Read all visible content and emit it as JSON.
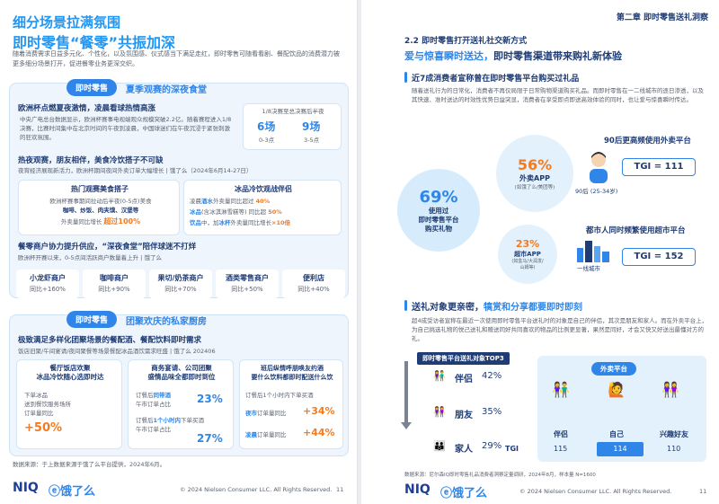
{
  "left": {
    "title1": "细分场景拉满氛围",
    "title2": "即时零售“餐零”共振加深",
    "intro": "随着消费需求日益多元化、个性化，以及氛围感、仪式感当下满足走红，即时零售可随看看剧、餐配饮品的消费潜力被更多细分场景打开，促进餐零业务更深交织。",
    "section1": {
      "pill": "即时零售",
      "title": "夏季观赛的深夜食堂",
      "block1": {
        "title": "欧洲杯点燃夏夜激情，凌晨看球热情高涨",
        "body": "中央广电总台数据显示，欧洲杯赛事电视端观众规模突破2.2亿。随着赛程进入1/8决赛，比赛时间集中在北京时间的午夜到凌晨，中国球迷们在午夜沉浸于紧张刺激的狂欢氛围。",
        "stat_title": "1/8决赛至总决赛后半夜",
        "stat1_value": "6场",
        "stat1_label": "0-3点",
        "stat2_value": "9场",
        "stat2_label": "3-5点"
      },
      "block2": {
        "title": "热夜观赛，朋友相伴，美食冷饮搭子不可缺",
        "subtitle": "夜宵经济展现新活力，欧洲杯期间夜间外卖订单大幅增长 | 饿了么（2024年6月14-27日）",
        "left_title": "热门观赛美食搭子",
        "left_line1": "欧洲杯赛事期间拉动后半夜(0-5点)美食",
        "left_line2": "咖啡、炒饭、肉夹馍、汉堡等",
        "left_line3a": "外卖量同比增长",
        "left_line3b": "超过100%",
        "right_title": "冰品冷饮观战伴侣",
        "right_line1a": "凌晨",
        "right_line1b": "酒水",
        "right_line1c": "外卖量同比超过",
        "right_line1d": "40%",
        "right_line2a": "冰品",
        "right_line2b": "(含冰淇淋雪糕等) 同比超",
        "right_line2c": "50%",
        "right_line3a": "饮品",
        "right_line3b": "中，加",
        "right_line3c": "冰杯",
        "right_line3d": "外卖量同比增长",
        "right_line3e": "×10倍"
      },
      "block3": {
        "title": "餐零商户协力提升供应，“深夜食堂”陪伴球迷不打烊",
        "subtitle": "欧洲杯开赛以来，0-5点间活跃商户数量着上升 | 饿了么",
        "merchants": [
          {
            "name": "小龙虾商户",
            "value": "同比+160%"
          },
          {
            "name": "咖啡商户",
            "value": "同比+90%"
          },
          {
            "name": "果切/奶茶商户",
            "value": "同比+70%"
          },
          {
            "name": "酒类零售商户",
            "value": "同比+50%"
          },
          {
            "name": "便利店",
            "value": "同比+40%"
          }
        ]
      }
    },
    "section2": {
      "pill": "即时零售",
      "title": "团聚欢庆的私家厨房",
      "block_title": "极致满足多样化团聚场景的餐配酒、餐配饮料即时需求",
      "block_sub": "饭店旧聚/午间宴请/夜间聚餐等场景餐配冰品酒饮需求旺盛 | 饿了么 202406",
      "col1_title": "餐厅饭店欢聚\n冰品冷饮随心选即时达",
      "col1_line1": "下单冰品",
      "col1_line2": "送到餐饮服务场所",
      "col1_line3": "订单量同比",
      "col1_value": "+50%",
      "col2_title": "商务宴请、公司团聚\n盛情品味全都即时到位",
      "col2_line1a": "订餐后",
      "col2_line1b": "同带酒",
      "col2_line2": "午市订单占比",
      "col2_value1": "23%",
      "col2_line3a": "订餐后",
      "col2_line3b": "1个小时内",
      "col2_line3c": "下单买酒",
      "col2_line4": "午市订单占比",
      "col2_value2": "27%",
      "col3_title": "班后纵情呼朋唤友约酒\n要什么饮料都即时配送什么饮",
      "col3_line1": "订餐后1个小时内下单买酒",
      "col3_line2a": "夜市",
      "col3_line2b": "订单量同比",
      "col3_value1": "+34%",
      "col3_line3a": "凌晨",
      "col3_line3b": "订单量同比",
      "col3_value2": "+44%"
    },
    "source": "数据来源：于上数据来源于饿了么平台提供，2024年6月。",
    "footer_brand1": "NIQ",
    "footer_brand2": "饿了么",
    "copyright": "© 2024 Nielsen Consumer LLC. All Rights Reserved.",
    "page_no": "11"
  },
  "right": {
    "chapter": "第二章 即时零售送礼洞察",
    "section_num": "2.2",
    "section_title": "即时零售打开送礼社交新方式",
    "heading_pre": "爱与惊喜瞬时送达，",
    "heading_post": "即时零售渠道带来购礼新体验",
    "sub_heading": "近7成消费者宣称曾在即时零售平台购买过礼品",
    "body1": "随着送礼行为的日常化，消费者不再仅局限于日常购物渠道购买礼品。而即时零售在一二线城市的逐日渗透，以及其快速、准时送达的时效性优势日益突显，消费者在享受即点即送高效体验的同时，也让爱与惊喜瞬时传达。",
    "big_pct": "69%",
    "big_label": "使用过\n即时零售平台\n购买礼物",
    "app1_pct": "56%",
    "app1_name": "外卖APP",
    "app1_note": "(如饿了么/美团等)",
    "app2_pct": "23%",
    "app2_name": "超市APP",
    "app2_note": "(如盒马/大润发/\n山姆等)",
    "insight1_title": "90后更高频使用外卖平台",
    "insight1_label": "90后 (25-34岁)",
    "insight1_tgi": "TGI = 111",
    "insight2_title": "都市人同时频繁使用超市平台",
    "insight2_label": "一线城市",
    "insight2_tgi": "TGI = 152",
    "heading2_pre": "送礼对象更亲密，",
    "heading2_post": "犒赏和分享都要即时即刻",
    "body2": "超4成受访者宣称在最近一次使用即时零售平台送礼时的对象是自己的伴侣，其次是朋友和家人。而在外卖平台上，为自己挑选礼物的悦己送礼和赠送同好共同喜欢的物品的比例更显著，果然是同好，才会又快又好送出最懂对方的礼。",
    "top3_title": "即时零售平台送礼对象TOP3",
    "top3": [
      {
        "label": "伴侣",
        "pct": "42%"
      },
      {
        "label": "朋友",
        "pct": "35%"
      },
      {
        "label": "家人",
        "pct": "29%"
      }
    ],
    "waimai_label": "外卖平台",
    "waimai_cols": [
      "伴侣",
      "自己",
      "兴趣好友"
    ],
    "tgi_label": "TGI",
    "tgi_values": [
      "115",
      "114",
      "110"
    ],
    "source": "数据来源：尼尔森IQ即时零售礼品消费者洞察定量调研，2024年8月，样本量 N=1600",
    "footer_brand1": "NIQ",
    "footer_brand2": "饿了么",
    "copyright": "© 2024 Nielsen Consumer LLC. All Rights Reserved.",
    "page_no": "11"
  },
  "colors": {
    "primary": "#2f86e8",
    "accent": "#f47b20",
    "navy": "#1f3c74"
  }
}
